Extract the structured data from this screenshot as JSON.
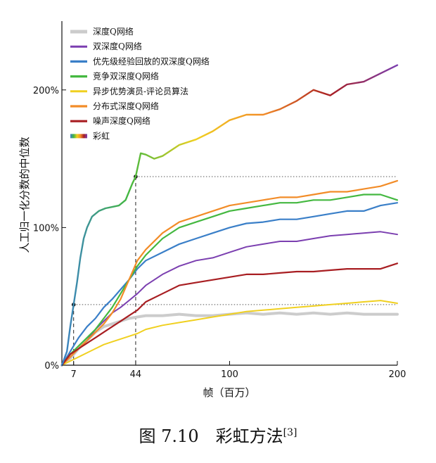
{
  "caption": {
    "text": "图 7.10　彩虹方法",
    "ref": "[3]"
  },
  "chart_data": {
    "type": "line",
    "xlabel": "帧（百万）",
    "ylabel": "人工归一化分数的中位数",
    "xlim": [
      0,
      200
    ],
    "ylim": [
      0,
      250
    ],
    "xticks": [
      7,
      44,
      100,
      200
    ],
    "xtick_labels": [
      "7",
      "44",
      "100",
      "200"
    ],
    "yticks": [
      0,
      100,
      200
    ],
    "ytick_labels": [
      "0%",
      "100%",
      "200%"
    ],
    "legend_position": "top-left",
    "reference_lines": {
      "x": [
        7,
        44
      ],
      "y": [
        44,
        137
      ],
      "points": [
        {
          "x": 7,
          "y": 44
        },
        {
          "x": 44,
          "y": 137
        }
      ]
    },
    "series": [
      {
        "name": "深度Q网络",
        "color": "#cccccc",
        "width": 4,
        "x": [
          0,
          5,
          10,
          15,
          20,
          25,
          30,
          35,
          40,
          45,
          50,
          60,
          70,
          80,
          90,
          100,
          110,
          120,
          130,
          140,
          150,
          160,
          170,
          180,
          190,
          200
        ],
        "y": [
          0,
          5,
          12,
          18,
          24,
          28,
          30,
          32,
          34,
          35,
          36,
          36,
          37,
          36,
          36,
          37,
          38,
          37,
          38,
          37,
          38,
          37,
          38,
          37,
          37,
          37
        ]
      },
      {
        "name": "双深度Q网络",
        "color": "#7b3fb0",
        "width": 2,
        "x": [
          0,
          5,
          10,
          15,
          20,
          25,
          30,
          35,
          40,
          45,
          50,
          60,
          70,
          80,
          90,
          100,
          110,
          120,
          130,
          140,
          150,
          160,
          170,
          180,
          190,
          200
        ],
        "y": [
          0,
          6,
          12,
          18,
          26,
          32,
          38,
          42,
          47,
          52,
          58,
          66,
          72,
          76,
          78,
          82,
          86,
          88,
          90,
          90,
          92,
          94,
          95,
          96,
          97,
          95
        ]
      },
      {
        "name": "优先级经验回放的双深度Q网络",
        "color": "#3a7fc8",
        "width": 2.2,
        "x": [
          0,
          5,
          10,
          15,
          20,
          25,
          30,
          35,
          40,
          45,
          50,
          60,
          70,
          80,
          90,
          100,
          110,
          120,
          130,
          140,
          150,
          160,
          170,
          180,
          190,
          200
        ],
        "y": [
          0,
          10,
          20,
          28,
          34,
          42,
          48,
          55,
          62,
          70,
          76,
          82,
          88,
          92,
          96,
          100,
          103,
          104,
          106,
          106,
          108,
          110,
          112,
          112,
          116,
          118
        ]
      },
      {
        "name": "竞争双深度Q网络",
        "color": "#44b840",
        "width": 2.2,
        "x": [
          0,
          5,
          10,
          15,
          20,
          25,
          30,
          35,
          40,
          45,
          50,
          60,
          70,
          80,
          90,
          100,
          110,
          120,
          130,
          140,
          150,
          160,
          170,
          180,
          190,
          200
        ],
        "y": [
          0,
          8,
          14,
          20,
          26,
          34,
          42,
          52,
          62,
          72,
          80,
          92,
          100,
          104,
          108,
          112,
          114,
          116,
          118,
          118,
          120,
          120,
          122,
          124,
          124,
          120
        ]
      },
      {
        "name": "异步优势演员-评论员算法",
        "color": "#f0d020",
        "width": 2,
        "x": [
          0,
          5,
          10,
          15,
          20,
          25,
          30,
          35,
          40,
          45,
          50,
          60,
          70,
          80,
          90,
          100,
          110,
          120,
          130,
          140,
          150,
          160,
          170,
          180,
          190,
          200
        ],
        "y": [
          0,
          3,
          6,
          9,
          12,
          15,
          17,
          19,
          21,
          23,
          26,
          29,
          31,
          33,
          35,
          37,
          39,
          40,
          41,
          42,
          43,
          44,
          45,
          46,
          47,
          45
        ]
      },
      {
        "name": "分布式深度Q网络",
        "color": "#f28c28",
        "width": 2.2,
        "x": [
          0,
          5,
          10,
          15,
          20,
          25,
          30,
          35,
          40,
          45,
          50,
          60,
          70,
          80,
          90,
          100,
          110,
          120,
          130,
          140,
          150,
          160,
          170,
          180,
          190,
          200
        ],
        "y": [
          0,
          6,
          12,
          18,
          24,
          30,
          38,
          48,
          62,
          76,
          84,
          96,
          104,
          108,
          112,
          116,
          118,
          120,
          122,
          122,
          124,
          126,
          126,
          128,
          130,
          134
        ]
      },
      {
        "name": "噪声深度Q网络",
        "color": "#a81e22",
        "width": 2.2,
        "x": [
          0,
          5,
          10,
          15,
          20,
          25,
          30,
          35,
          40,
          45,
          50,
          60,
          70,
          80,
          90,
          100,
          110,
          120,
          130,
          140,
          150,
          160,
          170,
          180,
          190,
          200
        ],
        "y": [
          0,
          8,
          12,
          16,
          20,
          24,
          28,
          32,
          36,
          40,
          46,
          52,
          58,
          60,
          62,
          64,
          66,
          66,
          67,
          68,
          68,
          69,
          70,
          70,
          70,
          74
        ]
      },
      {
        "name": "彩虹",
        "color": "rainbow",
        "width": 2.4,
        "x": [
          0,
          3,
          5,
          7,
          9,
          11,
          13,
          15,
          18,
          22,
          26,
          30,
          34,
          38,
          42,
          44,
          47,
          50,
          55,
          60,
          70,
          80,
          90,
          100,
          110,
          120,
          130,
          140,
          150,
          160,
          170,
          180,
          190,
          200
        ],
        "y": [
          0,
          10,
          28,
          44,
          60,
          78,
          92,
          100,
          108,
          112,
          114,
          115,
          116,
          120,
          132,
          137,
          154,
          153,
          150,
          152,
          160,
          164,
          170,
          178,
          182,
          182,
          186,
          192,
          200,
          196,
          204,
          206,
          212,
          218
        ]
      }
    ]
  }
}
